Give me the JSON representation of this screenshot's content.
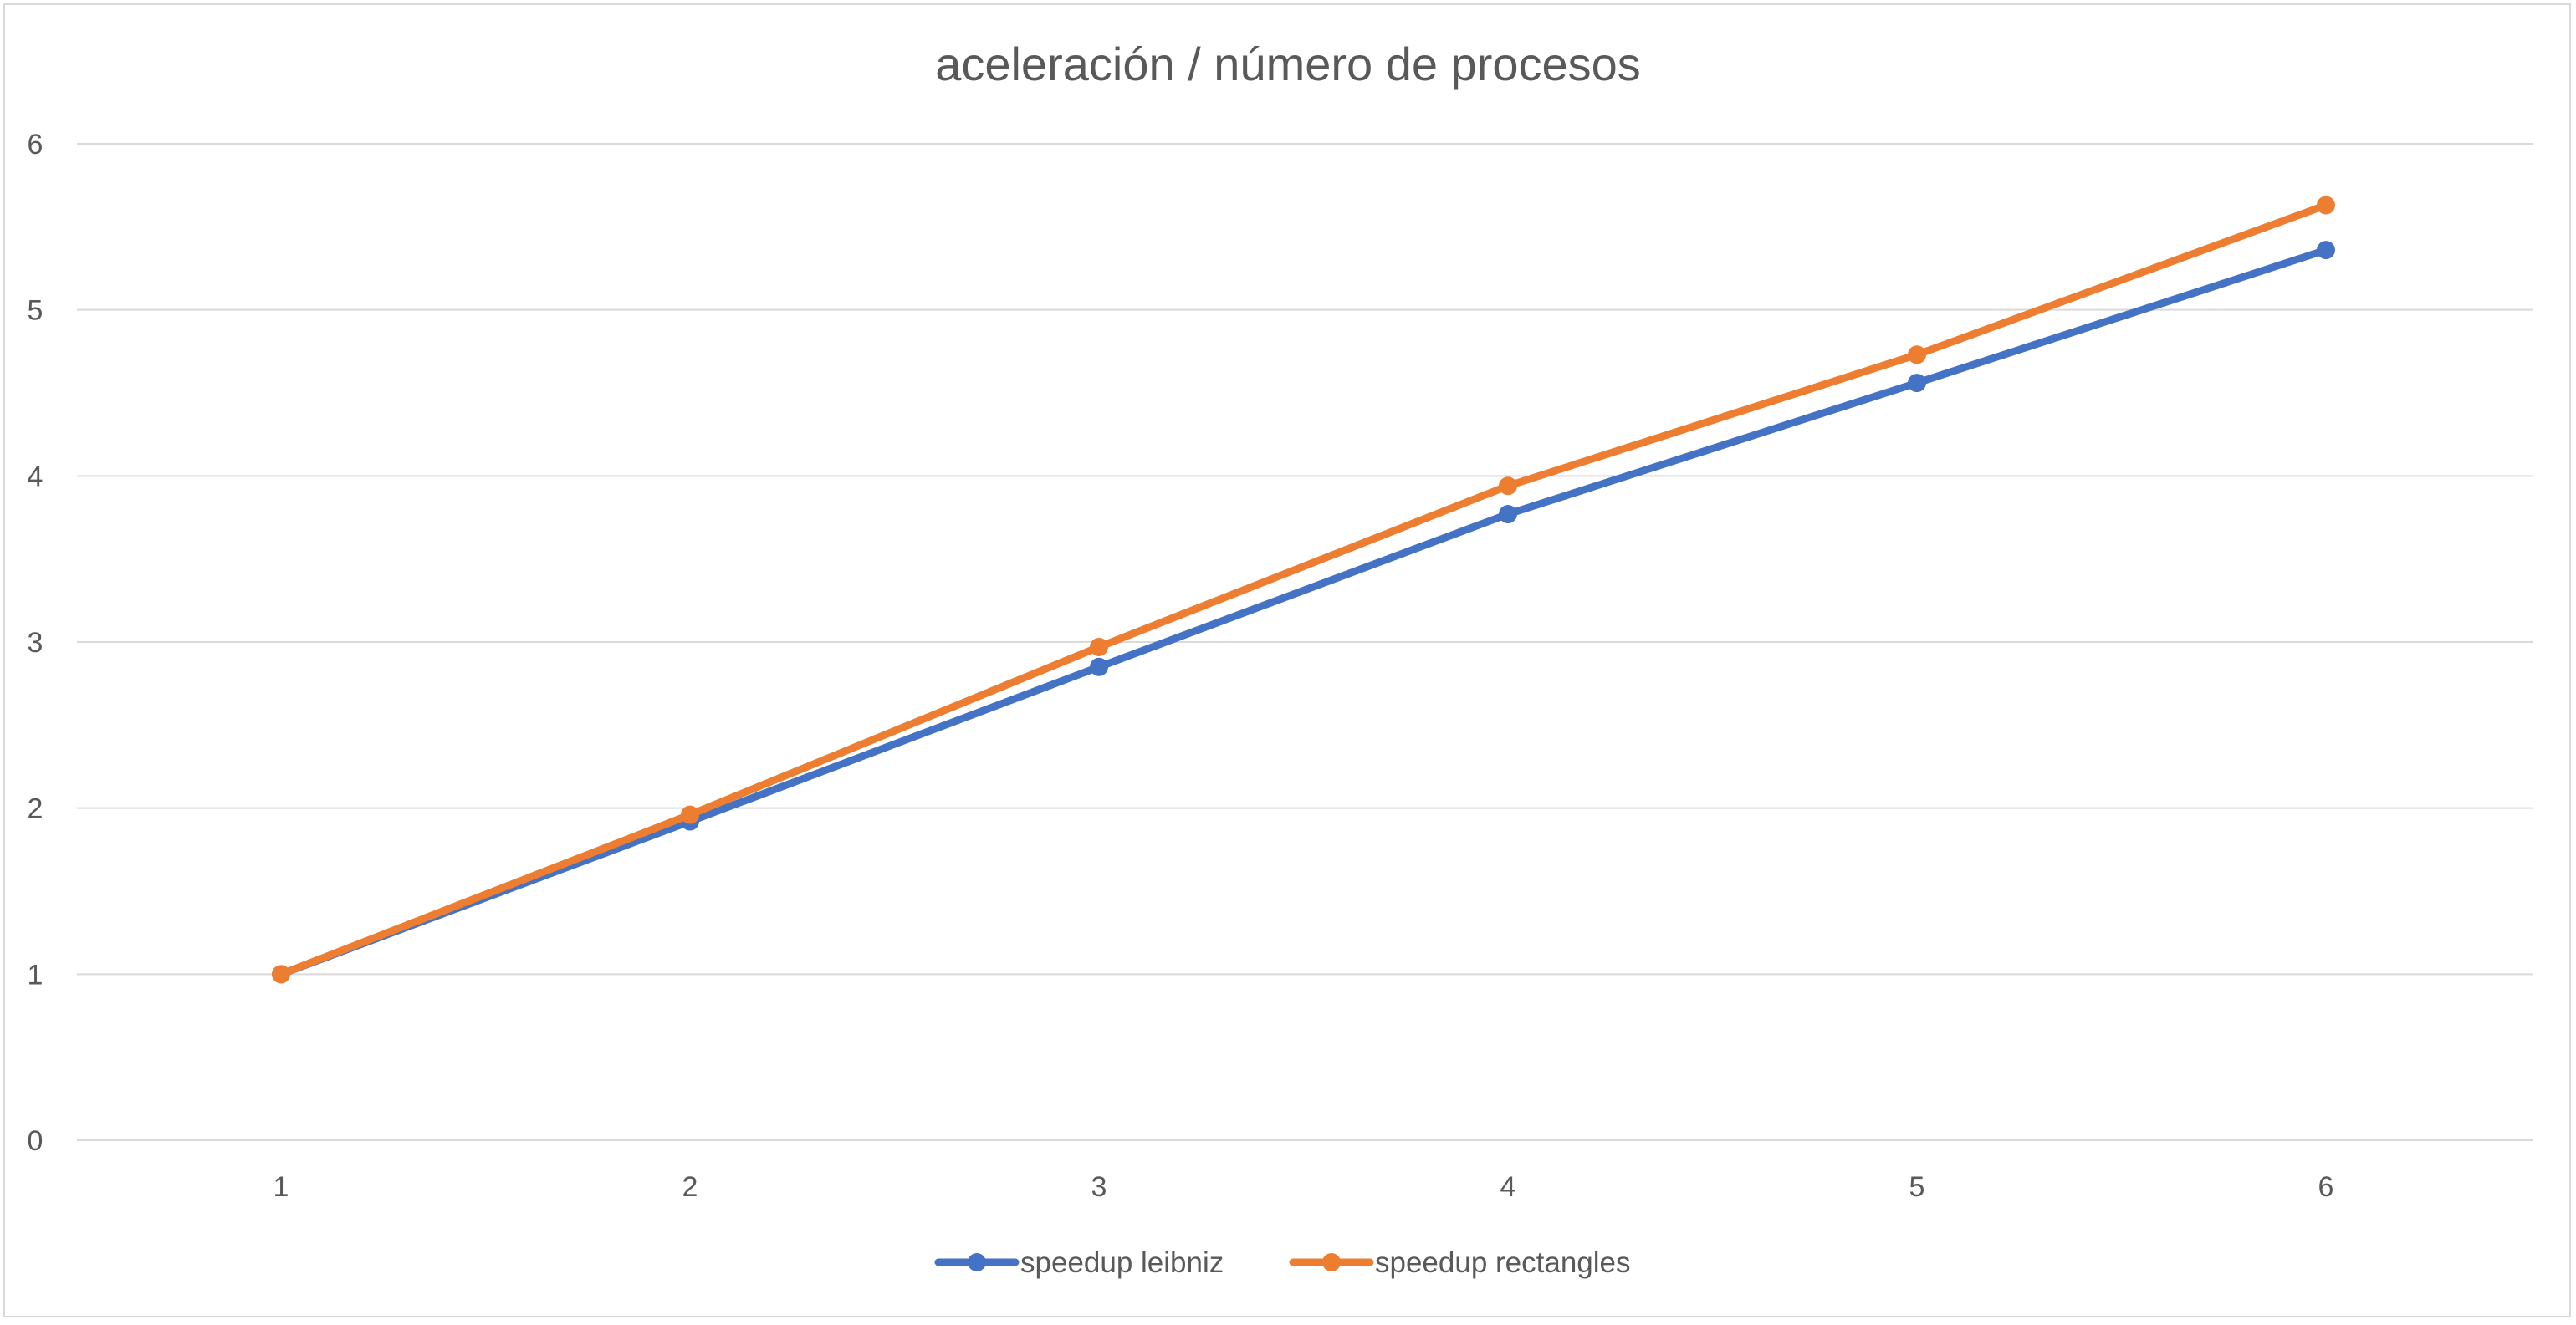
{
  "chart_data": {
    "type": "line",
    "title": "aceleración / número de procesos",
    "xlabel": "",
    "ylabel": "",
    "categories": [
      "1",
      "2",
      "3",
      "4",
      "5",
      "6"
    ],
    "x": [
      1,
      2,
      3,
      4,
      5,
      6
    ],
    "ylim": [
      0,
      6
    ],
    "yticks": [
      "0",
      "1",
      "2",
      "3",
      "4",
      "5",
      "6"
    ],
    "grid": true,
    "legend_position": "bottom",
    "series": [
      {
        "name": "speedup leibniz",
        "color": "#4472c4",
        "values": [
          1.0,
          1.92,
          2.85,
          3.77,
          4.56,
          5.36
        ]
      },
      {
        "name": "speedup rectangles",
        "color": "#ed7d31",
        "values": [
          1.0,
          1.96,
          2.97,
          3.94,
          4.73,
          5.63
        ]
      }
    ]
  }
}
